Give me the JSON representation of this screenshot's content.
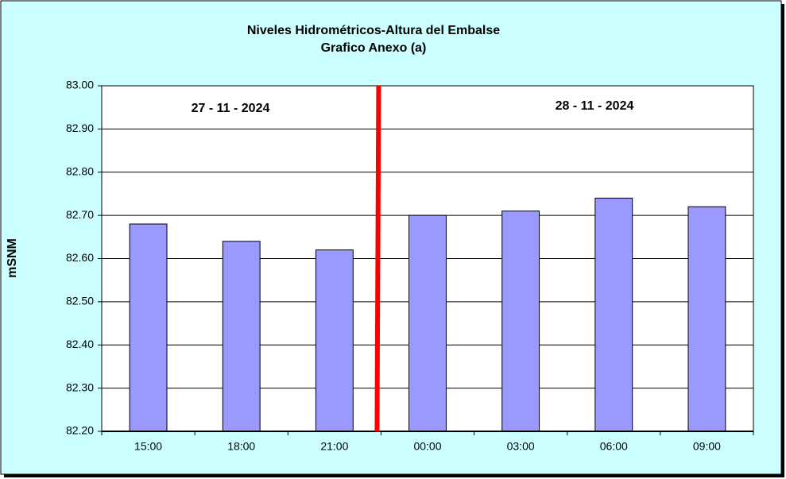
{
  "chart_data": {
    "type": "bar",
    "title": "Niveles Hidrométricos-Altura del Embalse",
    "subtitle": "Grafico Anexo (a)",
    "y_label": "mSNM",
    "annotations": [
      "27 - 11 - 2024",
      "28 - 11 - 2024"
    ],
    "categories": [
      "15:00",
      "18:00",
      "21:00",
      "00:00",
      "03:00",
      "06:00",
      "09:00"
    ],
    "values": [
      82.68,
      82.64,
      82.62,
      82.7,
      82.71,
      82.74,
      82.72
    ],
    "color": "#9999ff",
    "divider_color": "#ff0000",
    "divider_before_category": 3,
    "ylim": [
      82.2,
      83
    ],
    "yticks": [
      {
        "value": 82.2,
        "label": "82.20"
      },
      {
        "value": 82.3,
        "label": "82.30"
      },
      {
        "value": 82.4,
        "label": "82.40"
      },
      {
        "value": 82.5,
        "label": "82.50"
      },
      {
        "value": 82.6,
        "label": "82.60"
      },
      {
        "value": 82.7,
        "label": "82.70"
      },
      {
        "value": 82.8,
        "label": "82.80"
      },
      {
        "value": 82.9,
        "label": "82.90"
      },
      {
        "value": 83,
        "label": "83.00"
      }
    ],
    "grid": true
  }
}
